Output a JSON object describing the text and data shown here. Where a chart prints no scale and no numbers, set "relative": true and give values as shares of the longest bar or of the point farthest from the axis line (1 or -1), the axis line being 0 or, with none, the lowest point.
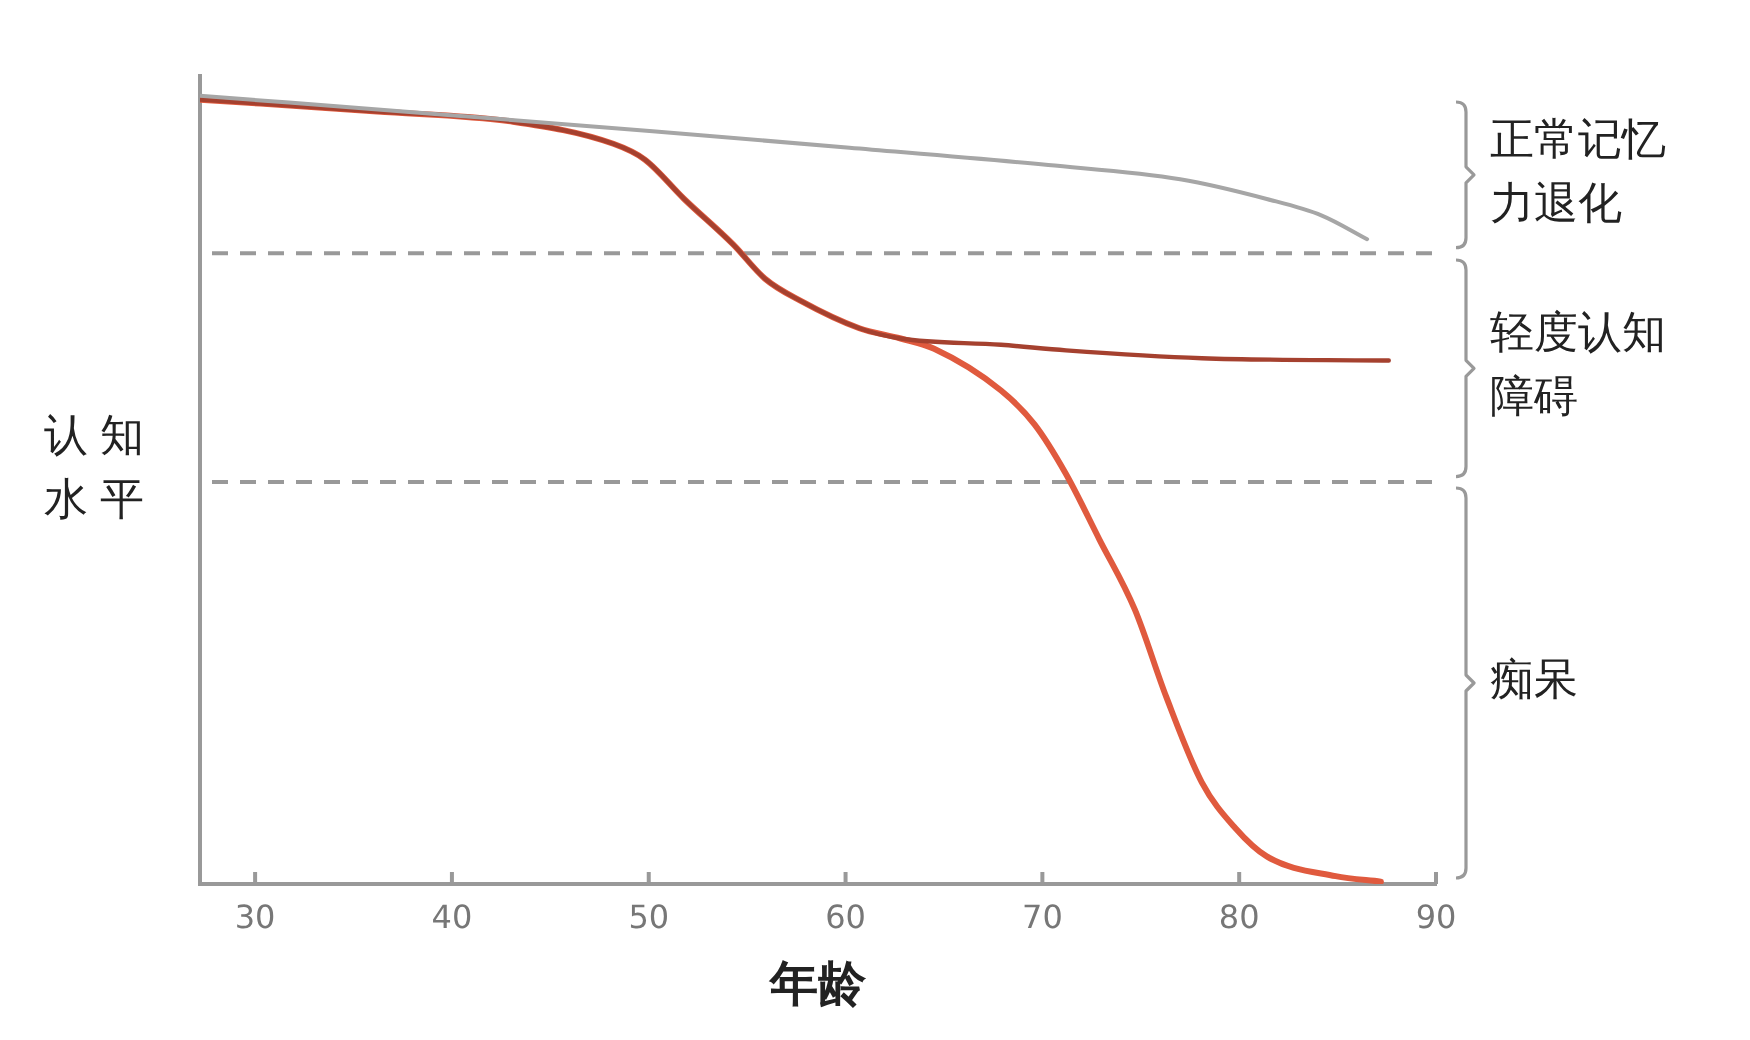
{
  "chart_data": {
    "type": "line",
    "xlabel": "年龄",
    "ylabel": "认知水平",
    "relative": true,
    "xlim": [
      27.2,
      90
    ],
    "xticks": [
      30,
      40,
      50,
      60,
      70,
      80,
      90
    ],
    "grid": false,
    "legend": false,
    "marker": "none",
    "series": [
      {
        "color": "#a6a6a6",
        "x": [
          27.2,
          40.1,
          50.2,
          60.2,
          70.3,
          77,
          81.4,
          84.2,
          86.5
        ],
        "values": [
          1,
          0.975,
          0.955,
          0.934,
          0.912,
          0.894,
          0.869,
          0.848,
          0.818
        ]
      },
      {
        "color": "#a5412f",
        "x": [
          27.2,
          36.2,
          43.1,
          48.2,
          49.8,
          51.8,
          54.3,
          55.9,
          57.7,
          60.7,
          62.8,
          67.9,
          71.2,
          78.1,
          87.6
        ],
        "values": [
          0.995,
          0.98,
          0.967,
          0.939,
          0.919,
          0.869,
          0.811,
          0.768,
          0.74,
          0.705,
          0.692,
          0.684,
          0.677,
          0.667,
          0.664
        ]
      },
      {
        "color": "#e05a3e",
        "x": [
          27.2,
          36.2,
          43.1,
          48.2,
          49.8,
          51.8,
          54.3,
          55.9,
          57.7,
          60.7,
          62.8,
          64.5,
          67.9,
          69.6,
          71.2,
          72.9,
          74.7,
          76.3,
          78.1,
          79.8,
          81.4,
          84.9,
          87.2
        ],
        "values": [
          0.995,
          0.98,
          0.967,
          0.939,
          0.919,
          0.869,
          0.811,
          0.768,
          0.74,
          0.705,
          0.692,
          0.679,
          0.626,
          0.583,
          0.52,
          0.437,
          0.348,
          0.237,
          0.129,
          0.071,
          0.035,
          0.01,
          0.003
        ]
      }
    ],
    "ref_lines": [
      {
        "axis": "y",
        "value": 0.8,
        "color": "#999999",
        "line_style": "dashed"
      },
      {
        "axis": "y",
        "value": 0.51,
        "color": "#999999",
        "line_style": "dashed"
      }
    ],
    "annotations": [
      "正常记忆力退化",
      "轻度认知障碍",
      "痴呆"
    ]
  }
}
